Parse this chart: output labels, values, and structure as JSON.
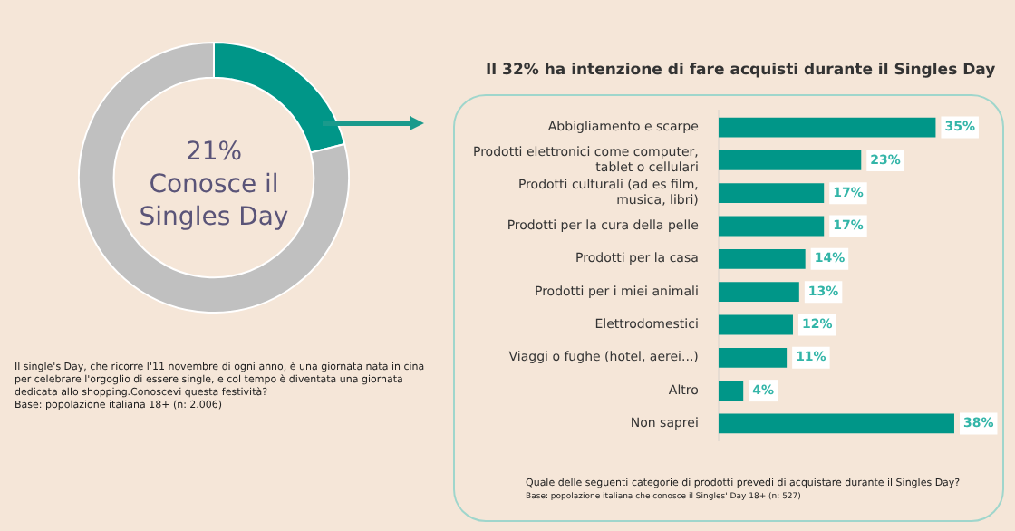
{
  "chart_data": [
    {
      "type": "donut",
      "categories": [
        null,
        null
      ],
      "values": [
        21,
        79
      ],
      "colors": [
        "#009688",
        "#c0c0c0"
      ],
      "value_labels": [
        "21%",
        null
      ],
      "legend": false,
      "annotations": [
        "Conosce il Singles Day",
        "Il single's Day, che ricorre l'11 novembre di ogni anno, è una giornata nata in cina per celebrare l'orgoglio di essere single, e col tempo è diventata una giornata dedicata allo shopping.Conoscevi questa festività?",
        "Base: popolazione italiana 18+ (n: 2.006)"
      ]
    },
    {
      "type": "bar",
      "orientation": "horizontal",
      "title": "Il 32% ha intenzione di fare acquisti durante il Singles Day",
      "categories": [
        "Abbigliamento e scarpe",
        "Prodotti elettronici come computer, tablet o cellulari",
        "Prodotti culturali (ad es film, musica, libri)",
        "Prodotti per la cura della pelle",
        "Prodotti per la casa",
        "Prodotti per i miei animali",
        "Elettrodomestici",
        "Viaggi o fughe (hotel, aerei...)",
        "Altro",
        "Non saprei"
      ],
      "values": [
        35,
        23,
        17,
        17,
        14,
        13,
        12,
        11,
        4,
        38
      ],
      "color": "#009688",
      "value_labels": [
        "35%",
        "23%",
        "17%",
        "17%",
        "14%",
        "13%",
        "12%",
        "11%",
        "4%",
        "38%"
      ],
      "tick_labels": "y",
      "legend": false,
      "annotations": [
        "Quale delle seguenti categorie di prodotti prevedi di acquistare durante il Singles Day?",
        "Base: popolazione italiana che conosce il Singles' Day 18+ (n: 527)"
      ]
    }
  ]
}
